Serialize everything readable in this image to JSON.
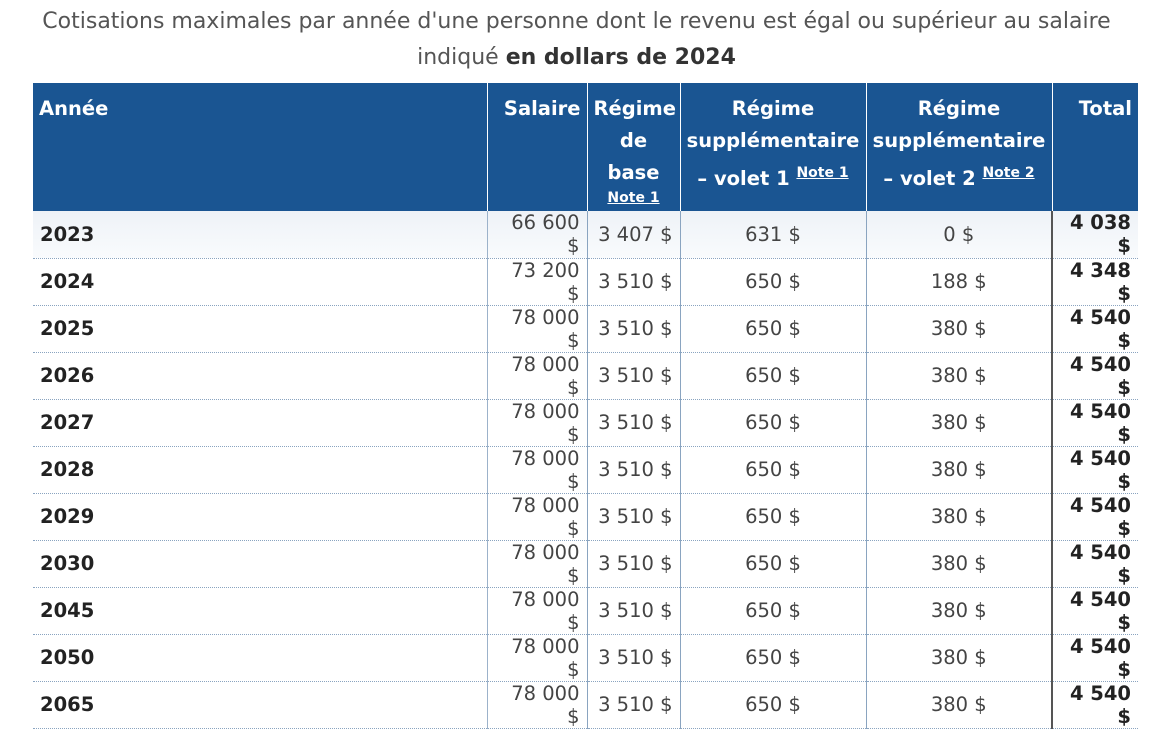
{
  "caption": {
    "line1": "Cotisations maximales par année d'une personne dont le revenu est égal ou supérieur au salaire",
    "line2_prefix": "indiqué ",
    "line2_bold": "en dollars de 2024"
  },
  "table": {
    "headers": {
      "year": "Année",
      "salary": "Salaire",
      "base_l1": "Régime",
      "base_l2": "de",
      "base_l3": "base",
      "base_note": "Note 1",
      "v1_l1": "Régime",
      "v1_l2": "supplémentaire",
      "v1_l3": "– volet 1",
      "v1_note": "Note 1",
      "v2_l1": "Régime",
      "v2_l2": "supplémentaire",
      "v2_l3": "– volet 2",
      "v2_note": "Note 2",
      "total": "Total"
    },
    "rows": [
      {
        "year": "2023",
        "salary": "66 600 $",
        "base": "3 407 $",
        "v1": "631 $",
        "v2": "0 $",
        "total": "4 038 $"
      },
      {
        "year": "2024",
        "salary": "73 200 $",
        "base": "3 510 $",
        "v1": "650 $",
        "v2": "188 $",
        "total": "4 348 $"
      },
      {
        "year": "2025",
        "salary": "78 000 $",
        "base": "3 510 $",
        "v1": "650 $",
        "v2": "380 $",
        "total": "4 540 $"
      },
      {
        "year": "2026",
        "salary": "78 000 $",
        "base": "3 510 $",
        "v1": "650 $",
        "v2": "380 $",
        "total": "4 540 $"
      },
      {
        "year": "2027",
        "salary": "78 000 $",
        "base": "3 510 $",
        "v1": "650 $",
        "v2": "380 $",
        "total": "4 540 $"
      },
      {
        "year": "2028",
        "salary": "78 000 $",
        "base": "3 510 $",
        "v1": "650 $",
        "v2": "380 $",
        "total": "4 540 $"
      },
      {
        "year": "2029",
        "salary": "78 000 $",
        "base": "3 510 $",
        "v1": "650 $",
        "v2": "380 $",
        "total": "4 540 $"
      },
      {
        "year": "2030",
        "salary": "78 000 $",
        "base": "3 510 $",
        "v1": "650 $",
        "v2": "380 $",
        "total": "4 540 $"
      },
      {
        "year": "2045",
        "salary": "78 000 $",
        "base": "3 510 $",
        "v1": "650 $",
        "v2": "380 $",
        "total": "4 540 $"
      },
      {
        "year": "2050",
        "salary": "78 000 $",
        "base": "3 510 $",
        "v1": "650 $",
        "v2": "380 $",
        "total": "4 540 $"
      },
      {
        "year": "2065",
        "salary": "78 000 $",
        "base": "3 510 $",
        "v1": "650 $",
        "v2": "380 $",
        "total": "4 540 $"
      }
    ]
  },
  "colors": {
    "header_bg": "#1a5592",
    "header_text": "#ffffff",
    "row_divider": "#8aa4c0"
  }
}
